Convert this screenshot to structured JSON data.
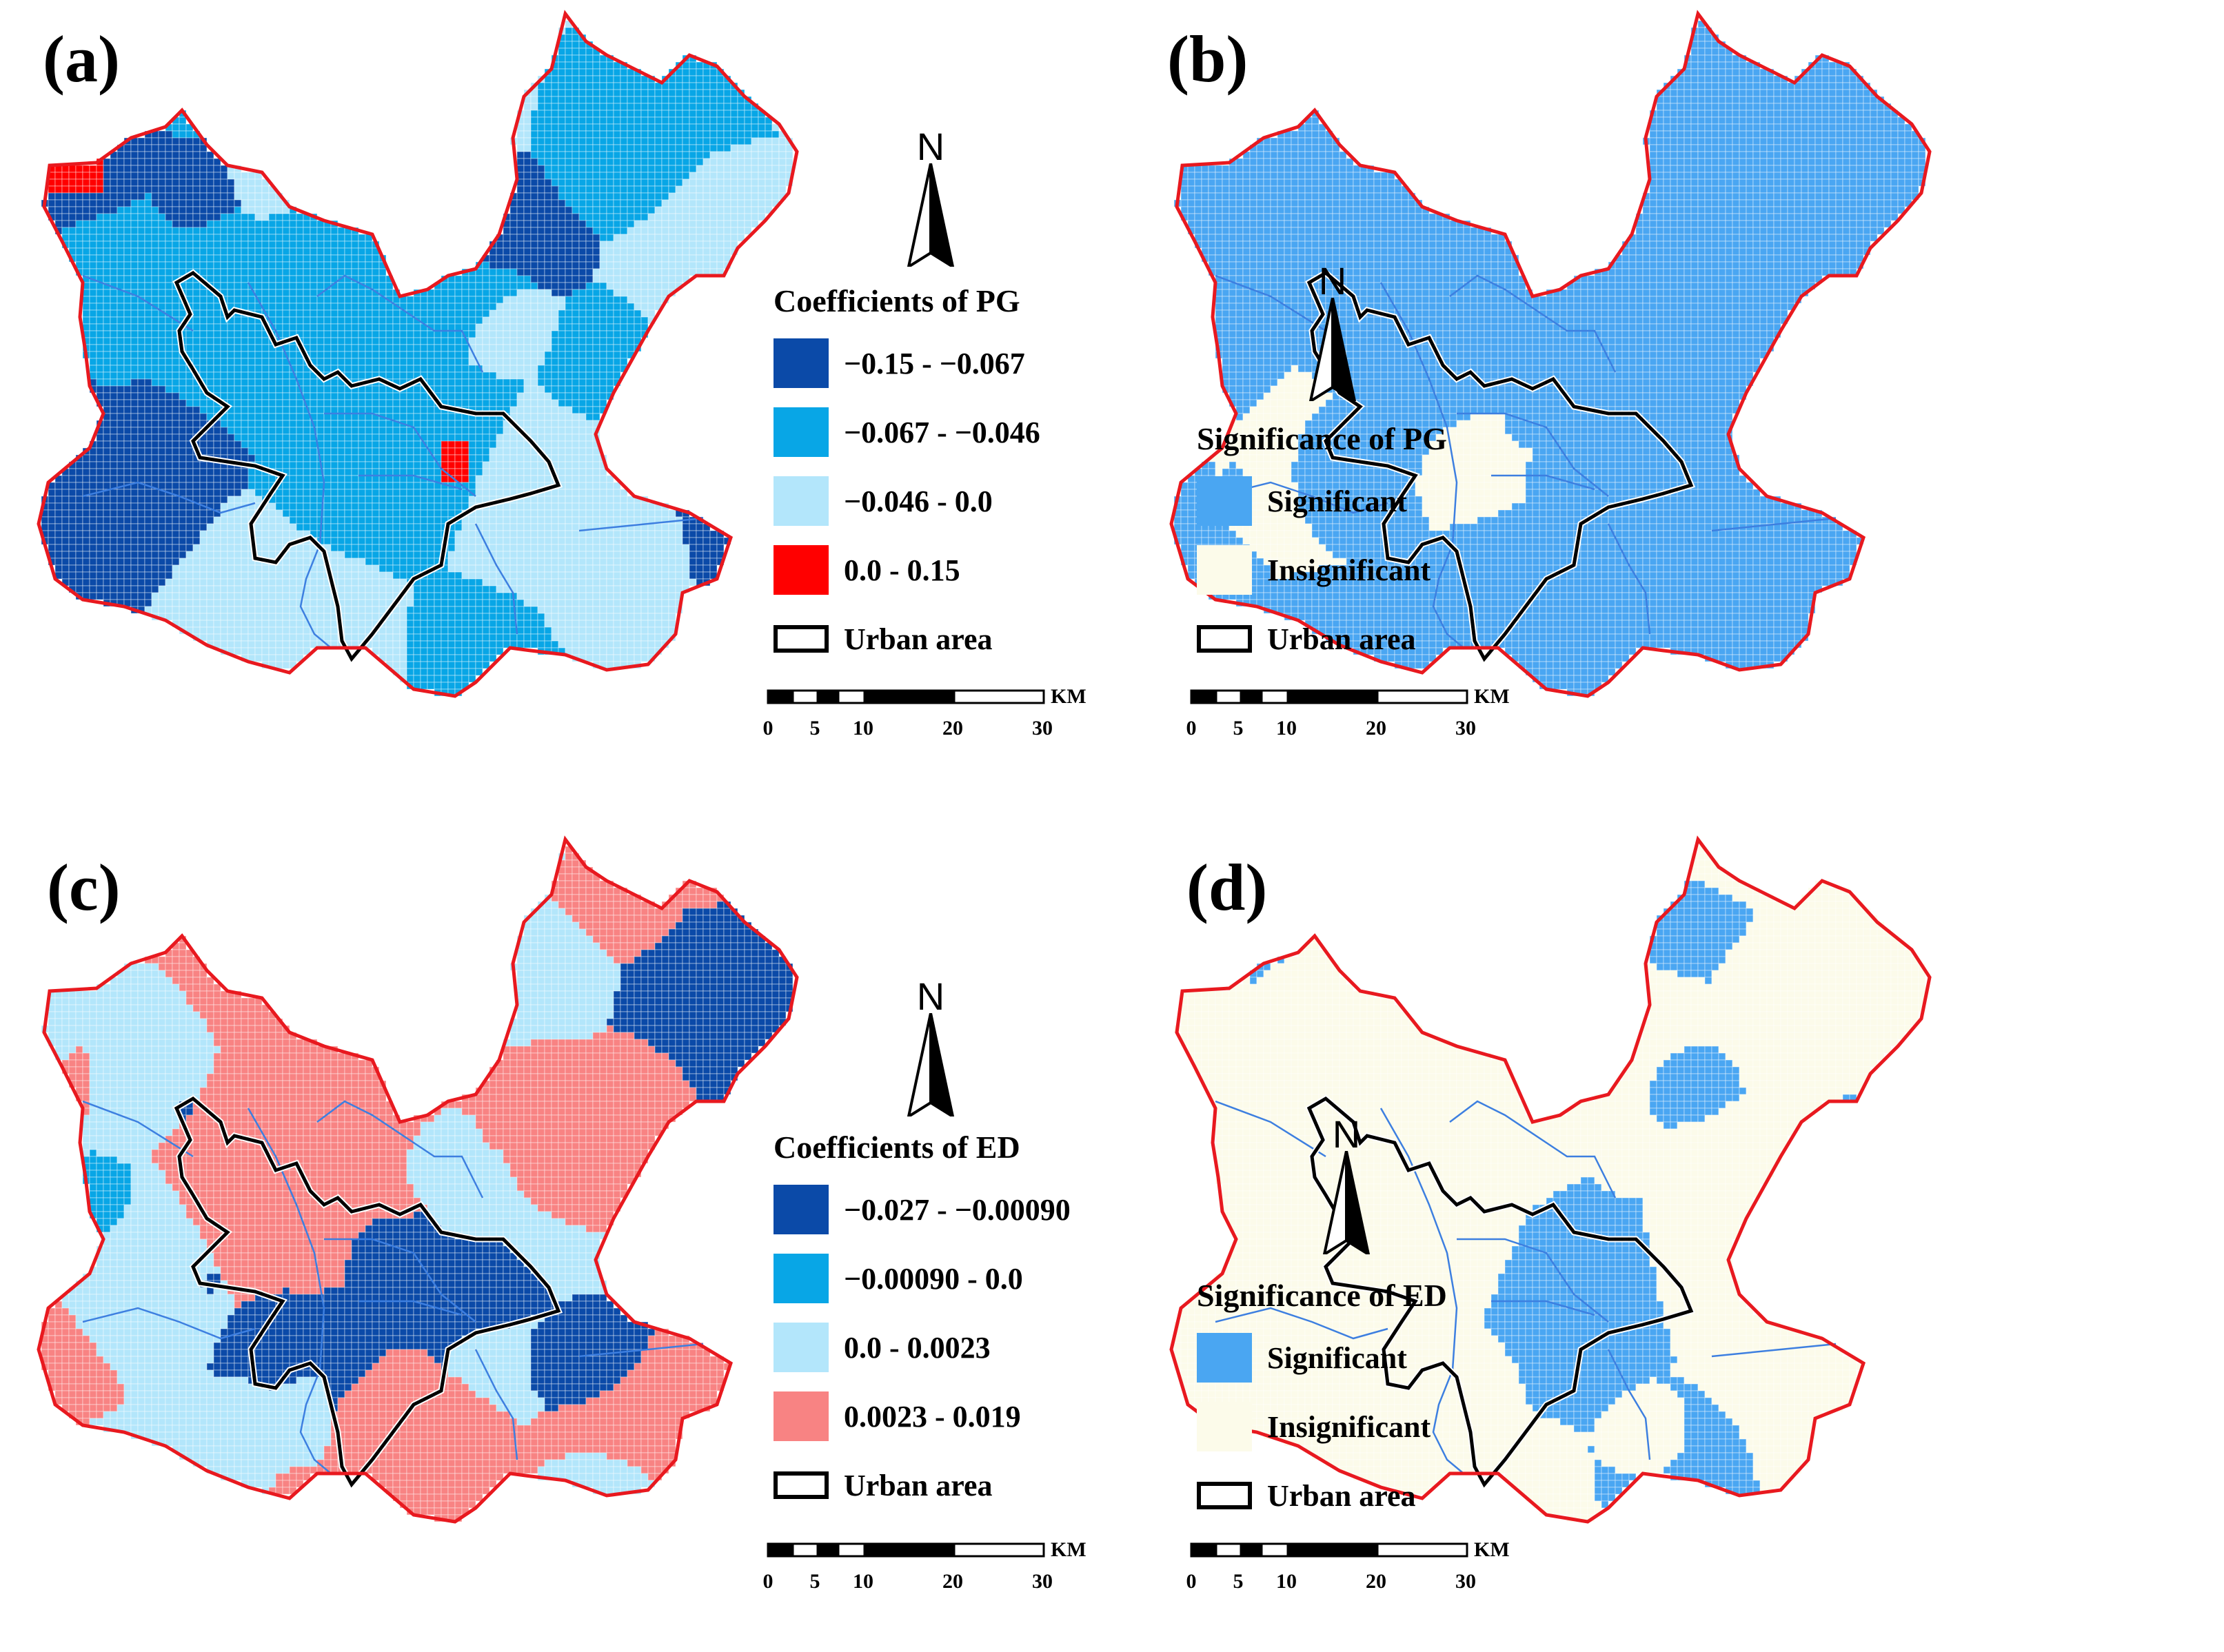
{
  "colors": {
    "dark_blue": "#0b4aa8",
    "mid_blue": "#08a6e6",
    "light_blue": "#b3e6fb",
    "red": "#ff0000",
    "salmon": "#f88383",
    "significant": "#4aa6f2",
    "insignificant": "#fcfbea",
    "boundary": "#e8191f",
    "urban": "#000000",
    "river": "#3d7fe0"
  },
  "panels": [
    {
      "label": "(a)",
      "legend": {
        "title": "Coefficients of PG",
        "items": [
          {
            "label": "−0.15 - −0.067",
            "color": "#0b4aa8"
          },
          {
            "label": "−0.067 - −0.046",
            "color": "#08a6e6"
          },
          {
            "label": "−0.046 - 0.0",
            "color": "#b3e6fb"
          },
          {
            "label": "0.0 - 0.15",
            "color": "#ff0000"
          },
          {
            "label": "Urban area",
            "outline": true
          }
        ]
      }
    },
    {
      "label": "(b)",
      "legend": {
        "title": "Significance of PG",
        "items": [
          {
            "label": "Significant",
            "color": "#4aa6f2"
          },
          {
            "label": "Insignificant",
            "color": "#fcfbea"
          },
          {
            "label": "Urban area",
            "outline": true
          }
        ]
      }
    },
    {
      "label": "(c)",
      "legend": {
        "title": "Coefficients of ED",
        "items": [
          {
            "label": "−0.027 - −0.00090",
            "color": "#0b4aa8"
          },
          {
            "label": "−0.00090 - 0.0",
            "color": "#08a6e6"
          },
          {
            "label": "0.0 - 0.0023",
            "color": "#b3e6fb"
          },
          {
            "label": "0.0023 - 0.019",
            "color": "#f88383"
          },
          {
            "label": "Urban area",
            "outline": true
          }
        ]
      }
    },
    {
      "label": "(d)",
      "legend": {
        "title": "Significance of ED",
        "items": [
          {
            "label": "Significant",
            "color": "#4aa6f2"
          },
          {
            "label": "Insignificant",
            "color": "#fcfbea"
          },
          {
            "label": "Urban area",
            "outline": true
          }
        ]
      }
    }
  ],
  "north_label": "N",
  "scale": {
    "unit": "KM",
    "ticks": [
      "0",
      "5",
      "10",
      "20",
      "30"
    ]
  }
}
